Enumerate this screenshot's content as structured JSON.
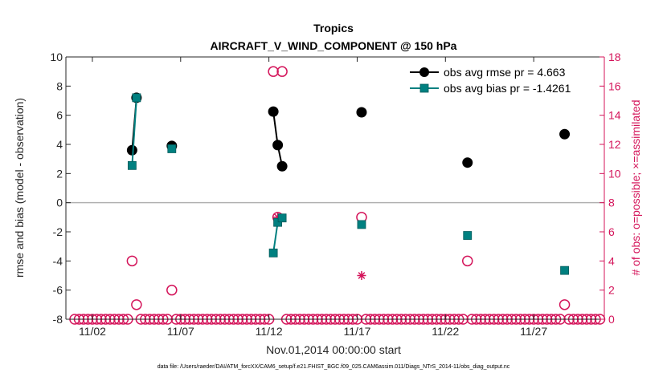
{
  "chart_data": {
    "type": "line",
    "title": "Tropics",
    "subtitle": "AIRCRAFT_V_WIND_COMPONENT @ 150 hPa",
    "xlabel": "Nov.01,2014 00:00:00 start",
    "ylabel": "rmse and bias (model - observation)",
    "ylabel_right": "# of obs: o=possible; ×=assimilated",
    "footnote": "data file: /Users/raeder/DAI/ATM_forcXX/CAM6_setup/f.e21.FHIST_BGC.f09_025.CAM6assim.011/Diags_NTrS_2014-11/obs_diag_output.nc",
    "xlim": [
      0.5,
      31.0
    ],
    "ylim": [
      -8,
      10
    ],
    "ylim_right": [
      0,
      18
    ],
    "x_ticks": [
      2,
      7,
      12,
      17,
      22,
      27
    ],
    "x_tick_labels": [
      "11/02",
      "11/07",
      "11/12",
      "11/17",
      "11/22",
      "11/27"
    ],
    "y_ticks": [
      -8,
      -6,
      -4,
      -2,
      0,
      2,
      4,
      6,
      8,
      10
    ],
    "y_tick_labels": [
      "-8",
      "-6",
      "-4",
      "-2",
      "0",
      "2",
      "4",
      "6",
      "8",
      "10"
    ],
    "y_ticks_right": [
      0,
      2,
      4,
      6,
      8,
      10,
      12,
      14,
      16,
      18
    ],
    "y_tick_labels_right": [
      "0",
      "2",
      "4",
      "6",
      "8",
      "10",
      "12",
      "14",
      "16",
      "18"
    ],
    "zero_line": 0,
    "legend_position": "top-right",
    "colors": {
      "rmse": "#000000",
      "bias": "#008080",
      "obs": "#d4145a",
      "zero": "#b0b0b0",
      "axis": "#262626"
    },
    "series": [
      {
        "name": "obs avg rmse pr = 4.663",
        "segments": [
          [
            [
              4.25,
              3.6
            ],
            [
              4.5,
              7.2
            ]
          ],
          [
            [
              6.5,
              3.9
            ]
          ],
          [
            [
              12.25,
              6.25
            ],
            [
              12.5,
              3.95
            ],
            [
              12.75,
              2.5
            ]
          ],
          [
            [
              17.25,
              6.2
            ]
          ],
          [
            [
              23.25,
              2.75
            ]
          ],
          [
            [
              28.75,
              4.7
            ]
          ]
        ]
      },
      {
        "name": "obs avg bias pr = -1.4261",
        "segments": [
          [
            [
              4.25,
              2.55
            ],
            [
              4.5,
              7.2
            ]
          ],
          [
            [
              6.5,
              3.7
            ]
          ],
          [
            [
              12.25,
              -3.45
            ],
            [
              12.5,
              -1.35
            ],
            [
              12.75,
              -1.05
            ]
          ],
          [
            [
              17.25,
              -1.5
            ]
          ],
          [
            [
              23.25,
              -2.25
            ]
          ],
          [
            [
              28.75,
              -4.65
            ]
          ]
        ]
      }
    ],
    "obs_possible": [
      [
        4.25,
        4
      ],
      [
        4.5,
        1
      ],
      [
        6.5,
        2
      ],
      [
        12.25,
        17
      ],
      [
        12.5,
        7
      ],
      [
        12.75,
        17
      ],
      [
        17.25,
        7
      ],
      [
        23.25,
        4
      ],
      [
        28.75,
        1
      ]
    ],
    "obs_assimilated": [
      [
        12.5,
        7
      ],
      [
        17.25,
        3
      ]
    ]
  }
}
